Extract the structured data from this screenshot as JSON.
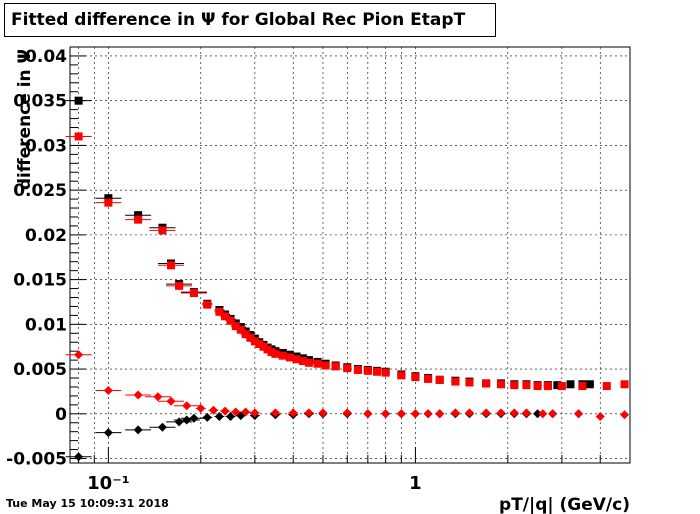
{
  "title": "Fitted difference in  Ψ  for Global Rec Pion EtapT",
  "timestamp": "Tue May 15 10:09:31 2018",
  "chart_data": {
    "type": "scatter",
    "title": "Fitted difference in  Ψ  for Global Rec Pion EtapT",
    "xlabel": "pT/|q| (GeV/c)",
    "ylabel": "difference in  Ψ",
    "xscale": "log",
    "xlim": [
      0.075,
      5.0
    ],
    "ylim": [
      -0.0055,
      0.041
    ],
    "yticks": [
      "-0.005",
      "0",
      "0.005",
      "0.01",
      "0.015",
      "0.02",
      "0.025",
      "0.03",
      "0.035",
      "0.04"
    ],
    "xticks": [
      "10⁻¹",
      "1"
    ],
    "grid": true,
    "colors": {
      "black": "#000000",
      "red": "#ff0000"
    },
    "series": [
      {
        "color": "#000000",
        "marker": "square",
        "x": [
          0.08,
          0.1,
          0.125,
          0.15,
          0.16,
          0.17,
          0.19,
          0.21,
          0.23,
          0.24,
          0.25,
          0.26,
          0.27,
          0.28,
          0.29,
          0.3,
          0.31,
          0.32,
          0.33,
          0.34,
          0.35,
          0.37,
          0.39,
          0.41,
          0.43,
          0.45,
          0.48,
          0.51,
          0.55,
          0.6,
          0.65,
          0.7,
          0.75,
          0.8,
          0.9,
          1.0,
          1.1,
          1.2,
          1.35,
          1.5,
          1.7,
          1.9,
          2.1,
          2.3,
          2.5,
          2.7,
          2.9,
          3.2,
          3.5,
          3.7
        ],
        "y": [
          0.035,
          0.0241,
          0.0222,
          0.0208,
          0.0168,
          0.0145,
          0.0136,
          0.0123,
          0.0116,
          0.0111,
          0.0106,
          0.0101,
          0.0097,
          0.0092,
          0.0088,
          0.0084,
          0.008,
          0.0077,
          0.0074,
          0.0072,
          0.007,
          0.0068,
          0.0066,
          0.0064,
          0.0062,
          0.006,
          0.0058,
          0.0056,
          0.0054,
          0.0052,
          0.005,
          0.0049,
          0.0048,
          0.0047,
          0.0044,
          0.0042,
          0.004,
          0.0038,
          0.0037,
          0.0036,
          0.0034,
          0.0034,
          0.0033,
          0.0033,
          0.0032,
          0.0032,
          0.0032,
          0.0033,
          0.0033,
          0.0033
        ]
      },
      {
        "color": "#ff0000",
        "marker": "square",
        "x": [
          0.08,
          0.1,
          0.125,
          0.15,
          0.16,
          0.17,
          0.19,
          0.21,
          0.23,
          0.24,
          0.25,
          0.26,
          0.27,
          0.28,
          0.29,
          0.3,
          0.31,
          0.32,
          0.33,
          0.34,
          0.35,
          0.37,
          0.39,
          0.41,
          0.43,
          0.45,
          0.48,
          0.51,
          0.55,
          0.6,
          0.65,
          0.7,
          0.75,
          0.8,
          0.9,
          1.0,
          1.1,
          1.2,
          1.35,
          1.5,
          1.7,
          1.9,
          2.1,
          2.3,
          2.5,
          2.7,
          3.0,
          3.5,
          4.2,
          4.8
        ],
        "y": [
          0.031,
          0.0236,
          0.0217,
          0.0205,
          0.0166,
          0.0143,
          0.0135,
          0.0122,
          0.0114,
          0.0109,
          0.0104,
          0.0098,
          0.0094,
          0.0089,
          0.0085,
          0.0081,
          0.0078,
          0.0075,
          0.0072,
          0.0069,
          0.0067,
          0.0065,
          0.0063,
          0.0061,
          0.0059,
          0.0057,
          0.0056,
          0.0054,
          0.0053,
          0.0051,
          0.0049,
          0.0048,
          0.0047,
          0.0046,
          0.0043,
          0.0041,
          0.0039,
          0.0038,
          0.0036,
          0.0035,
          0.0034,
          0.0033,
          0.0032,
          0.0032,
          0.0031,
          0.0031,
          0.0031,
          0.0031,
          0.0031,
          0.0033
        ]
      },
      {
        "color": "#000000",
        "marker": "diamond",
        "x": [
          0.08,
          0.1,
          0.125,
          0.15,
          0.17,
          0.18,
          0.19,
          0.21,
          0.23,
          0.25,
          0.27,
          0.3,
          0.35,
          0.4,
          0.45,
          0.5,
          0.6,
          0.7,
          0.8,
          0.9,
          1.0,
          1.1,
          1.2,
          1.35,
          1.5,
          1.7,
          1.9,
          2.1,
          2.3,
          2.5,
          2.8,
          3.4
        ],
        "y": [
          -0.0048,
          -0.0021,
          -0.0018,
          -0.0015,
          -0.0009,
          -0.0007,
          -0.0005,
          -0.0004,
          -0.0003,
          -0.0003,
          -0.0002,
          -0.0002,
          -0.0001,
          -0.0001,
          0.0,
          0.0,
          0.0,
          0.0,
          0.0,
          0.0,
          0.0,
          0.0,
          0.0,
          0.0,
          0.0,
          0.0,
          0.0,
          0.0,
          0.0,
          0.0,
          0.0,
          0.0
        ]
      },
      {
        "color": "#ff0000",
        "marker": "diamond",
        "x": [
          0.08,
          0.1,
          0.125,
          0.145,
          0.16,
          0.18,
          0.2,
          0.22,
          0.24,
          0.26,
          0.28,
          0.3,
          0.35,
          0.4,
          0.45,
          0.5,
          0.6,
          0.7,
          0.8,
          0.9,
          1.0,
          1.1,
          1.2,
          1.35,
          1.5,
          1.7,
          1.9,
          2.1,
          2.3,
          2.6,
          2.8,
          3.4,
          4.0,
          4.8
        ],
        "y": [
          0.0066,
          0.0026,
          0.0021,
          0.0019,
          0.0014,
          0.0009,
          0.0006,
          0.0004,
          0.0003,
          0.0002,
          0.0002,
          0.0001,
          0.0001,
          0.0001,
          0.0001,
          0.0001,
          0.0001,
          0.0,
          0.0,
          0.0,
          0.0,
          0.0,
          0.0,
          0.0001,
          0.0001,
          0.0001,
          0.0001,
          0.0001,
          0.0001,
          0.0,
          0.0,
          0.0,
          -0.0003,
          -0.0001
        ]
      }
    ]
  }
}
